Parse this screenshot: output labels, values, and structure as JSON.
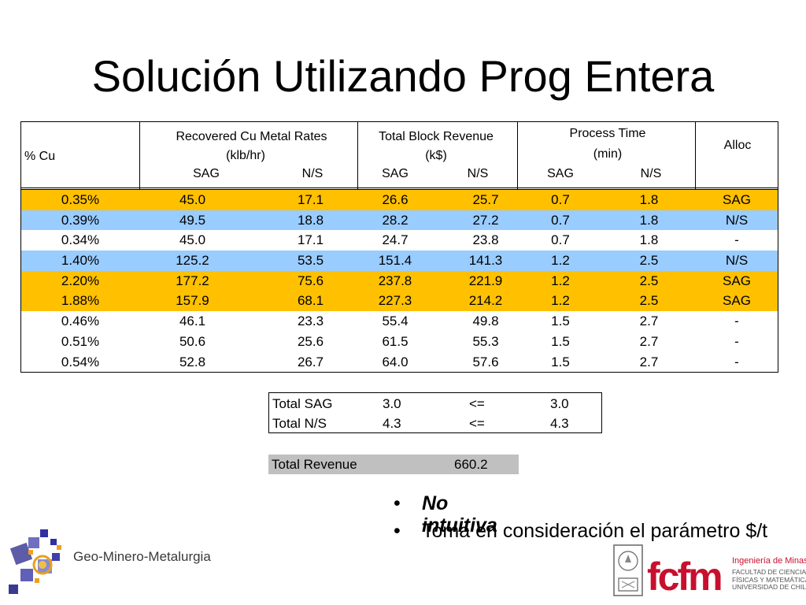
{
  "title": "Solución Utilizando Prog Entera",
  "table": {
    "headers": {
      "cu": "% Cu",
      "recovered_line1": "Recovered Cu Metal Rates",
      "recovered_line2": "(klb/hr)",
      "revenue_line1": "Total Block Revenue",
      "revenue_line2": "(k$)",
      "time_line1": "Process Time",
      "time_line2": "(min)",
      "alloc": "Alloc",
      "sag": "SAG",
      "ns": "N/S"
    },
    "rows": [
      {
        "pct": "0.35%",
        "rec_sag": "45.0",
        "rec_ns": "17.1",
        "rev_sag": "26.6",
        "rev_ns": "25.7",
        "t_sag": "0.7",
        "t_ns": "1.8",
        "alloc": "SAG",
        "highlight": "#ffc000"
      },
      {
        "pct": "0.39%",
        "rec_sag": "49.5",
        "rec_ns": "18.8",
        "rev_sag": "28.2",
        "rev_ns": "27.2",
        "t_sag": "0.7",
        "t_ns": "1.8",
        "alloc": "N/S",
        "highlight": "#99ccff"
      },
      {
        "pct": "0.34%",
        "rec_sag": "45.0",
        "rec_ns": "17.1",
        "rev_sag": "24.7",
        "rev_ns": "23.8",
        "t_sag": "0.7",
        "t_ns": "1.8",
        "alloc": "-",
        "highlight": "#ffffff"
      },
      {
        "pct": "1.40%",
        "rec_sag": "125.2",
        "rec_ns": "53.5",
        "rev_sag": "151.4",
        "rev_ns": "141.3",
        "t_sag": "1.2",
        "t_ns": "2.5",
        "alloc": "N/S",
        "highlight": "#99ccff"
      },
      {
        "pct": "2.20%",
        "rec_sag": "177.2",
        "rec_ns": "75.6",
        "rev_sag": "237.8",
        "rev_ns": "221.9",
        "t_sag": "1.2",
        "t_ns": "2.5",
        "alloc": "SAG",
        "highlight": "#ffc000"
      },
      {
        "pct": "1.88%",
        "rec_sag": "157.9",
        "rec_ns": "68.1",
        "rev_sag": "227.3",
        "rev_ns": "214.2",
        "t_sag": "1.2",
        "t_ns": "2.5",
        "alloc": "SAG",
        "highlight": "#ffc000"
      },
      {
        "pct": "0.46%",
        "rec_sag": "46.1",
        "rec_ns": "23.3",
        "rev_sag": "55.4",
        "rev_ns": "49.8",
        "t_sag": "1.5",
        "t_ns": "2.7",
        "alloc": "-",
        "highlight": "#ffffff"
      },
      {
        "pct": "0.51%",
        "rec_sag": "50.6",
        "rec_ns": "25.6",
        "rev_sag": "61.5",
        "rev_ns": "55.3",
        "t_sag": "1.5",
        "t_ns": "2.7",
        "alloc": "-",
        "highlight": "#ffffff"
      },
      {
        "pct": "0.54%",
        "rec_sag": "52.8",
        "rec_ns": "26.7",
        "rev_sag": "64.0",
        "rev_ns": "57.6",
        "t_sag": "1.5",
        "t_ns": "2.7",
        "alloc": "-",
        "highlight": "#ffffff"
      }
    ]
  },
  "constraints": [
    {
      "label": "Total SAG",
      "value": "3.0",
      "op": "<=",
      "limit": "3.0"
    },
    {
      "label": "Total N/S",
      "value": "4.3",
      "op": "<=",
      "limit": "4.3"
    }
  ],
  "total_revenue": {
    "label": "Total Revenue",
    "value": "660.2"
  },
  "bullets": [
    {
      "dot": "•",
      "text": "No intuitiva"
    },
    {
      "dot": "•",
      "text": "Toma en consideración el parámetro $/t"
    }
  ],
  "logos": {
    "geo_name": "Geo-Minero-Metalurgia",
    "fcfm": "fcfm",
    "faculty_title": "Ingeniería de Minas",
    "faculty_line1": "FACULTAD DE CIENCIAS",
    "faculty_line2": "FÍSICAS Y MATEMÁTICAS",
    "faculty_line3": "UNIVERSIDAD DE CHILE"
  },
  "colors": {
    "orange": "#ffc000",
    "blue": "#99ccff",
    "gray": "#c0c0c0",
    "fcfm_red": "#c8102e"
  }
}
